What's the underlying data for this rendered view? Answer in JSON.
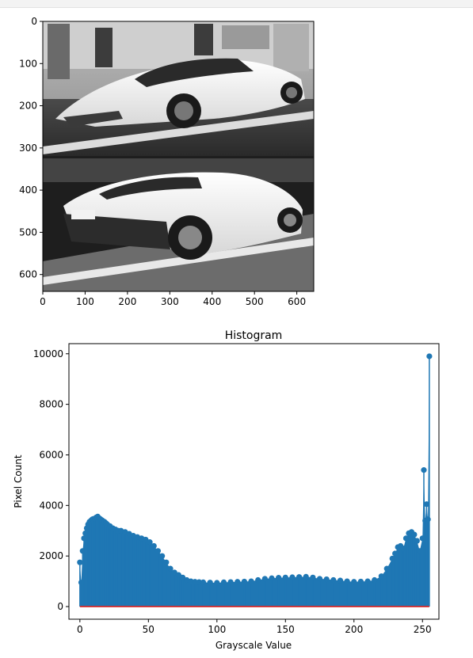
{
  "notebook": {
    "bar_color": "#f3f3f3"
  },
  "image_panel": {
    "description_icon": "photo-grayscale",
    "xticks": [
      0,
      100,
      200,
      300,
      400,
      500,
      600
    ],
    "yticks": [
      0,
      100,
      200,
      300,
      400,
      500,
      600
    ],
    "xlim": [
      0,
      640
    ],
    "ylim": [
      640,
      0
    ]
  },
  "chart_data": {
    "type": "stem",
    "title": "Histogram",
    "xlabel": "Grayscale Value",
    "ylabel": "Pixel Count",
    "xlim": [
      -8,
      262
    ],
    "ylim": [
      -500,
      10400
    ],
    "xticks": [
      0,
      50,
      100,
      150,
      200,
      250
    ],
    "yticks": [
      0,
      2000,
      4000,
      6000,
      8000,
      10000
    ],
    "stem_color": "#1f77b4",
    "baseline_color": "#d62728",
    "x": [
      0,
      1,
      2,
      3,
      4,
      5,
      6,
      7,
      8,
      9,
      10,
      11,
      12,
      13,
      14,
      15,
      16,
      17,
      18,
      19,
      20,
      22,
      24,
      26,
      28,
      30,
      33,
      36,
      39,
      42,
      45,
      48,
      51,
      54,
      57,
      60,
      63,
      66,
      69,
      72,
      75,
      78,
      81,
      84,
      87,
      90,
      95,
      100,
      105,
      110,
      115,
      120,
      125,
      130,
      135,
      140,
      145,
      150,
      155,
      160,
      165,
      170,
      175,
      180,
      185,
      190,
      195,
      200,
      205,
      210,
      215,
      220,
      224,
      228,
      230,
      232,
      234,
      236,
      238,
      240,
      242,
      244,
      246,
      248,
      250,
      251,
      252,
      253,
      254,
      255
    ],
    "y": [
      1750,
      950,
      2200,
      2700,
      2900,
      3100,
      3250,
      3350,
      3400,
      3450,
      3470,
      3480,
      3530,
      3560,
      3500,
      3460,
      3420,
      3380,
      3350,
      3300,
      3250,
      3180,
      3100,
      3050,
      3000,
      3000,
      2950,
      2880,
      2800,
      2750,
      2700,
      2650,
      2550,
      2400,
      2200,
      2000,
      1750,
      1500,
      1350,
      1250,
      1150,
      1050,
      1000,
      980,
      970,
      960,
      950,
      940,
      960,
      970,
      980,
      990,
      1000,
      1050,
      1100,
      1120,
      1140,
      1150,
      1160,
      1170,
      1180,
      1150,
      1100,
      1080,
      1050,
      1030,
      1000,
      980,
      990,
      1000,
      1050,
      1200,
      1500,
      1900,
      2100,
      2350,
      2400,
      2300,
      2700,
      2900,
      2950,
      2850,
      2600,
      2200,
      2700,
      5400,
      3400,
      4050,
      3450,
      9900
    ]
  }
}
